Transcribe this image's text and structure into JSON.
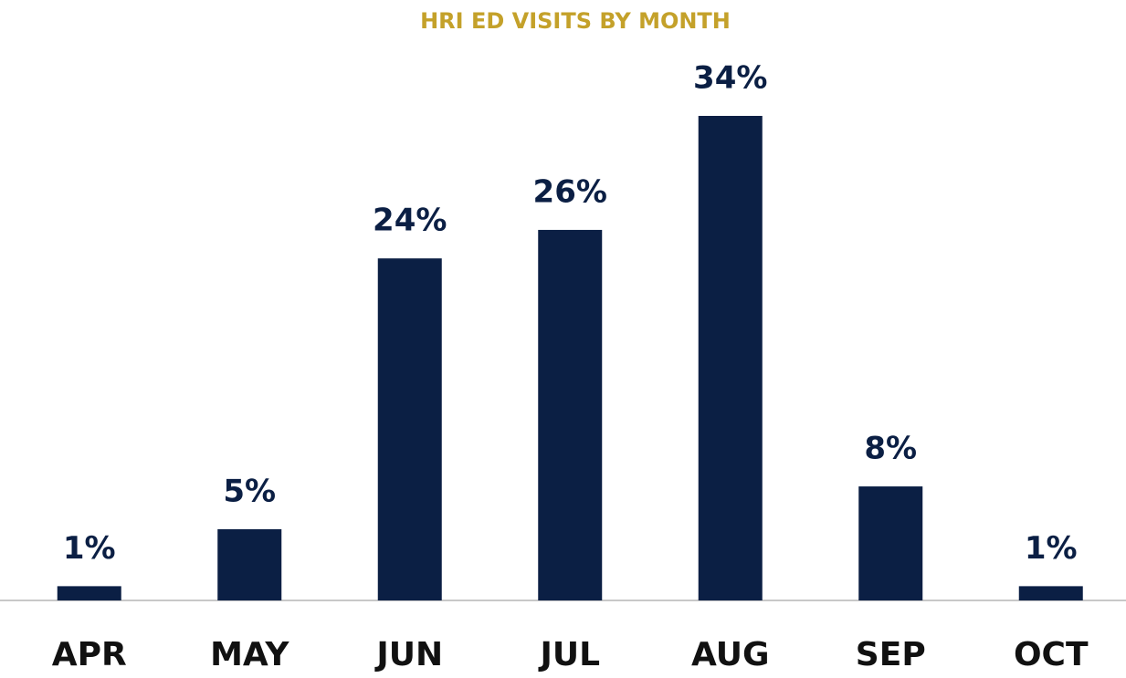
{
  "chart_data": {
    "type": "bar",
    "title": "HRI ED VISITS BY MONTH",
    "categories": [
      "APR",
      "MAY",
      "JUN",
      "JUL",
      "AUG",
      "SEP",
      "OCT"
    ],
    "values": [
      1,
      5,
      24,
      26,
      34,
      8,
      1
    ],
    "value_labels": [
      "1%",
      "5%",
      "24%",
      "26%",
      "34%",
      "8%",
      "1%"
    ],
    "color": "#0b1f44",
    "title_color": "#c4a12a"
  }
}
